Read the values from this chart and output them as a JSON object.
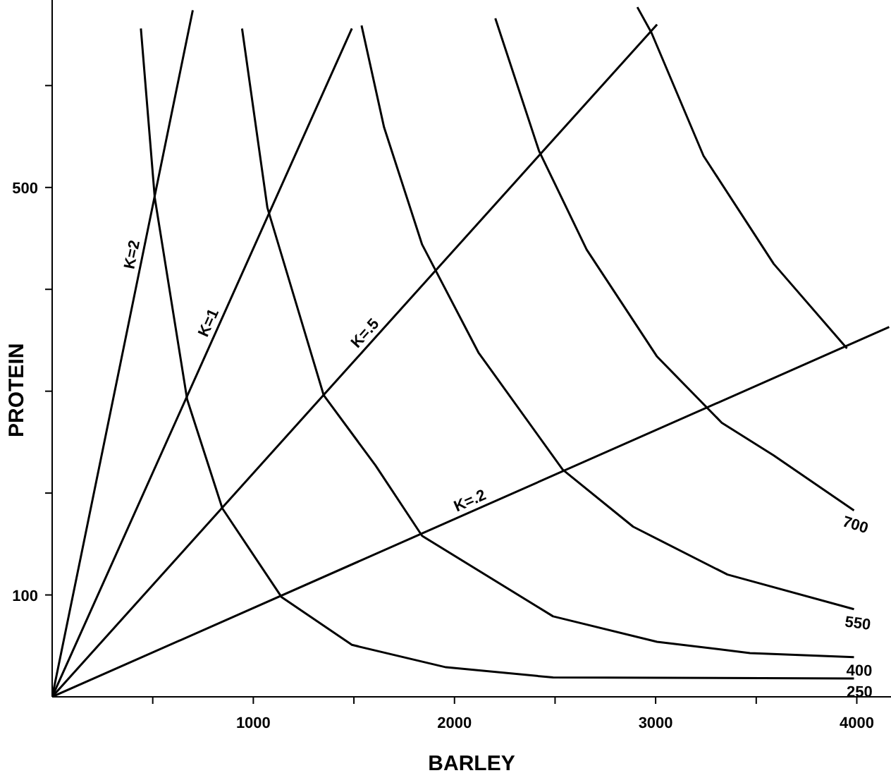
{
  "chart_data": {
    "type": "line",
    "xlabel": "BARLEY",
    "ylabel": "PROTEIN",
    "xlim": [
      0,
      4170
    ],
    "ylim": [
      0,
      684
    ],
    "xticks": [
      {
        "value": 500,
        "label": null
      },
      1000,
      {
        "value": 1500,
        "label": null
      },
      2000,
      {
        "value": 2500,
        "label": null
      },
      3000,
      {
        "value": 3500,
        "label": null
      },
      4000
    ],
    "yticks": [
      100,
      {
        "value": 200,
        "label": null
      },
      {
        "value": 300,
        "label": null
      },
      {
        "value": 400,
        "label": null
      },
      500,
      {
        "value": 600,
        "label": null
      }
    ],
    "marker": "none",
    "series": [
      {
        "name": "250",
        "color": "#000000",
        "x": [
          441,
          510,
          671,
          846,
          1140,
          1490,
          1958,
          2490,
          3986
        ],
        "values": [
          656,
          490,
          292,
          185,
          98,
          51,
          29,
          19,
          18
        ]
      },
      {
        "name": "400",
        "color": "#000000",
        "x": [
          944,
          1070,
          1350,
          1608,
          1839,
          2490,
          3007,
          3469,
          3986
        ],
        "values": [
          656,
          480,
          296,
          227,
          158,
          79,
          54,
          43,
          39
        ]
      },
      {
        "name": "550",
        "color": "#000000",
        "x": [
          1538,
          1650,
          1839,
          2119,
          2538,
          2888,
          3357,
          3986
        ],
        "values": [
          659,
          559,
          444,
          338,
          223,
          167,
          120,
          86
        ]
      },
      {
        "name": "700",
        "color": "#000000",
        "x": [
          2203,
          2420,
          2657,
          3007,
          3329,
          3587,
          3986
        ],
        "values": [
          666,
          536,
          439,
          334,
          269,
          237,
          183
        ]
      },
      {
        "color": "#000000",
        "x": [
          2909,
          2979,
          3238,
          3587,
          3951
        ],
        "values": [
          677,
          652,
          531,
          425,
          342
        ]
      },
      {
        "name": "K=2",
        "color": "#000000",
        "x": [
          0,
          448,
          699
        ],
        "values": [
          0,
          432,
          674
        ]
      },
      {
        "name": "K=1",
        "color": "#000000",
        "x": [
          0,
          825,
          1490
        ],
        "values": [
          0,
          363,
          656
        ]
      },
      {
        "name": "K=.5",
        "color": "#000000",
        "x": [
          0,
          1594,
          3007
        ],
        "values": [
          0,
          350,
          660
        ]
      },
      {
        "name": "K=.2",
        "color": "#000000",
        "x": [
          0,
          2098,
          4161
        ],
        "values": [
          0,
          183,
          363
        ]
      }
    ]
  }
}
